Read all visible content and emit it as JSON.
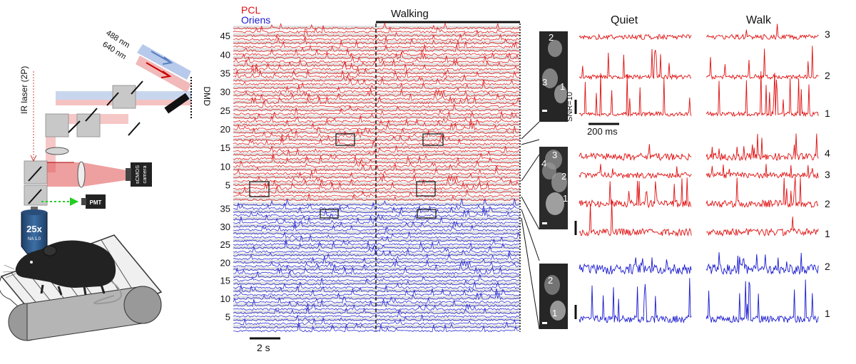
{
  "setup": {
    "wavelength_top": "488 nm",
    "wavelength_bottom": "640 nm",
    "dmd_label": "DMD",
    "ir_laser_label": "IR laser (2P)",
    "camera_line1": "sCMOS",
    "camera_line2": "camera",
    "pmt_label": "PMT",
    "objective_mag": "25x",
    "objective_na": "NA 1.0"
  },
  "raster": {
    "pcl_label": "PCL",
    "oriens_label": "Oriens",
    "walking_label": "Walking",
    "scalebar_label": "2 s",
    "pcl_ticks": [
      "45",
      "40",
      "35",
      "30",
      "25",
      "20",
      "15",
      "10",
      "5"
    ],
    "oriens_ticks": [
      "35",
      "30",
      "25",
      "20",
      "15",
      "10",
      "5"
    ],
    "pcl_count": 47,
    "oriens_count": 36
  },
  "detail": {
    "quiet_label": "Quiet",
    "walk_label": "Walk",
    "snr_label": "SNR=10",
    "time_scalebar_label": "200 ms",
    "group1": {
      "image_numbers": [
        "2",
        "3",
        "1"
      ],
      "trace_numbers": [
        "3",
        "2",
        "1"
      ]
    },
    "group2": {
      "image_numbers": [
        "3",
        "4",
        "2",
        "1"
      ],
      "trace_numbers": [
        "4",
        "3",
        "2",
        "1"
      ]
    },
    "group3": {
      "image_numbers": [
        "2",
        "1"
      ],
      "trace_numbers": [
        "2",
        "1"
      ]
    }
  },
  "colors": {
    "pcl": "#e01010",
    "oriens": "#1a1ad0",
    "blue_beam": "#9fb8e4",
    "red_beam": "#e88a8a",
    "pmt_path": "#22cc22"
  }
}
